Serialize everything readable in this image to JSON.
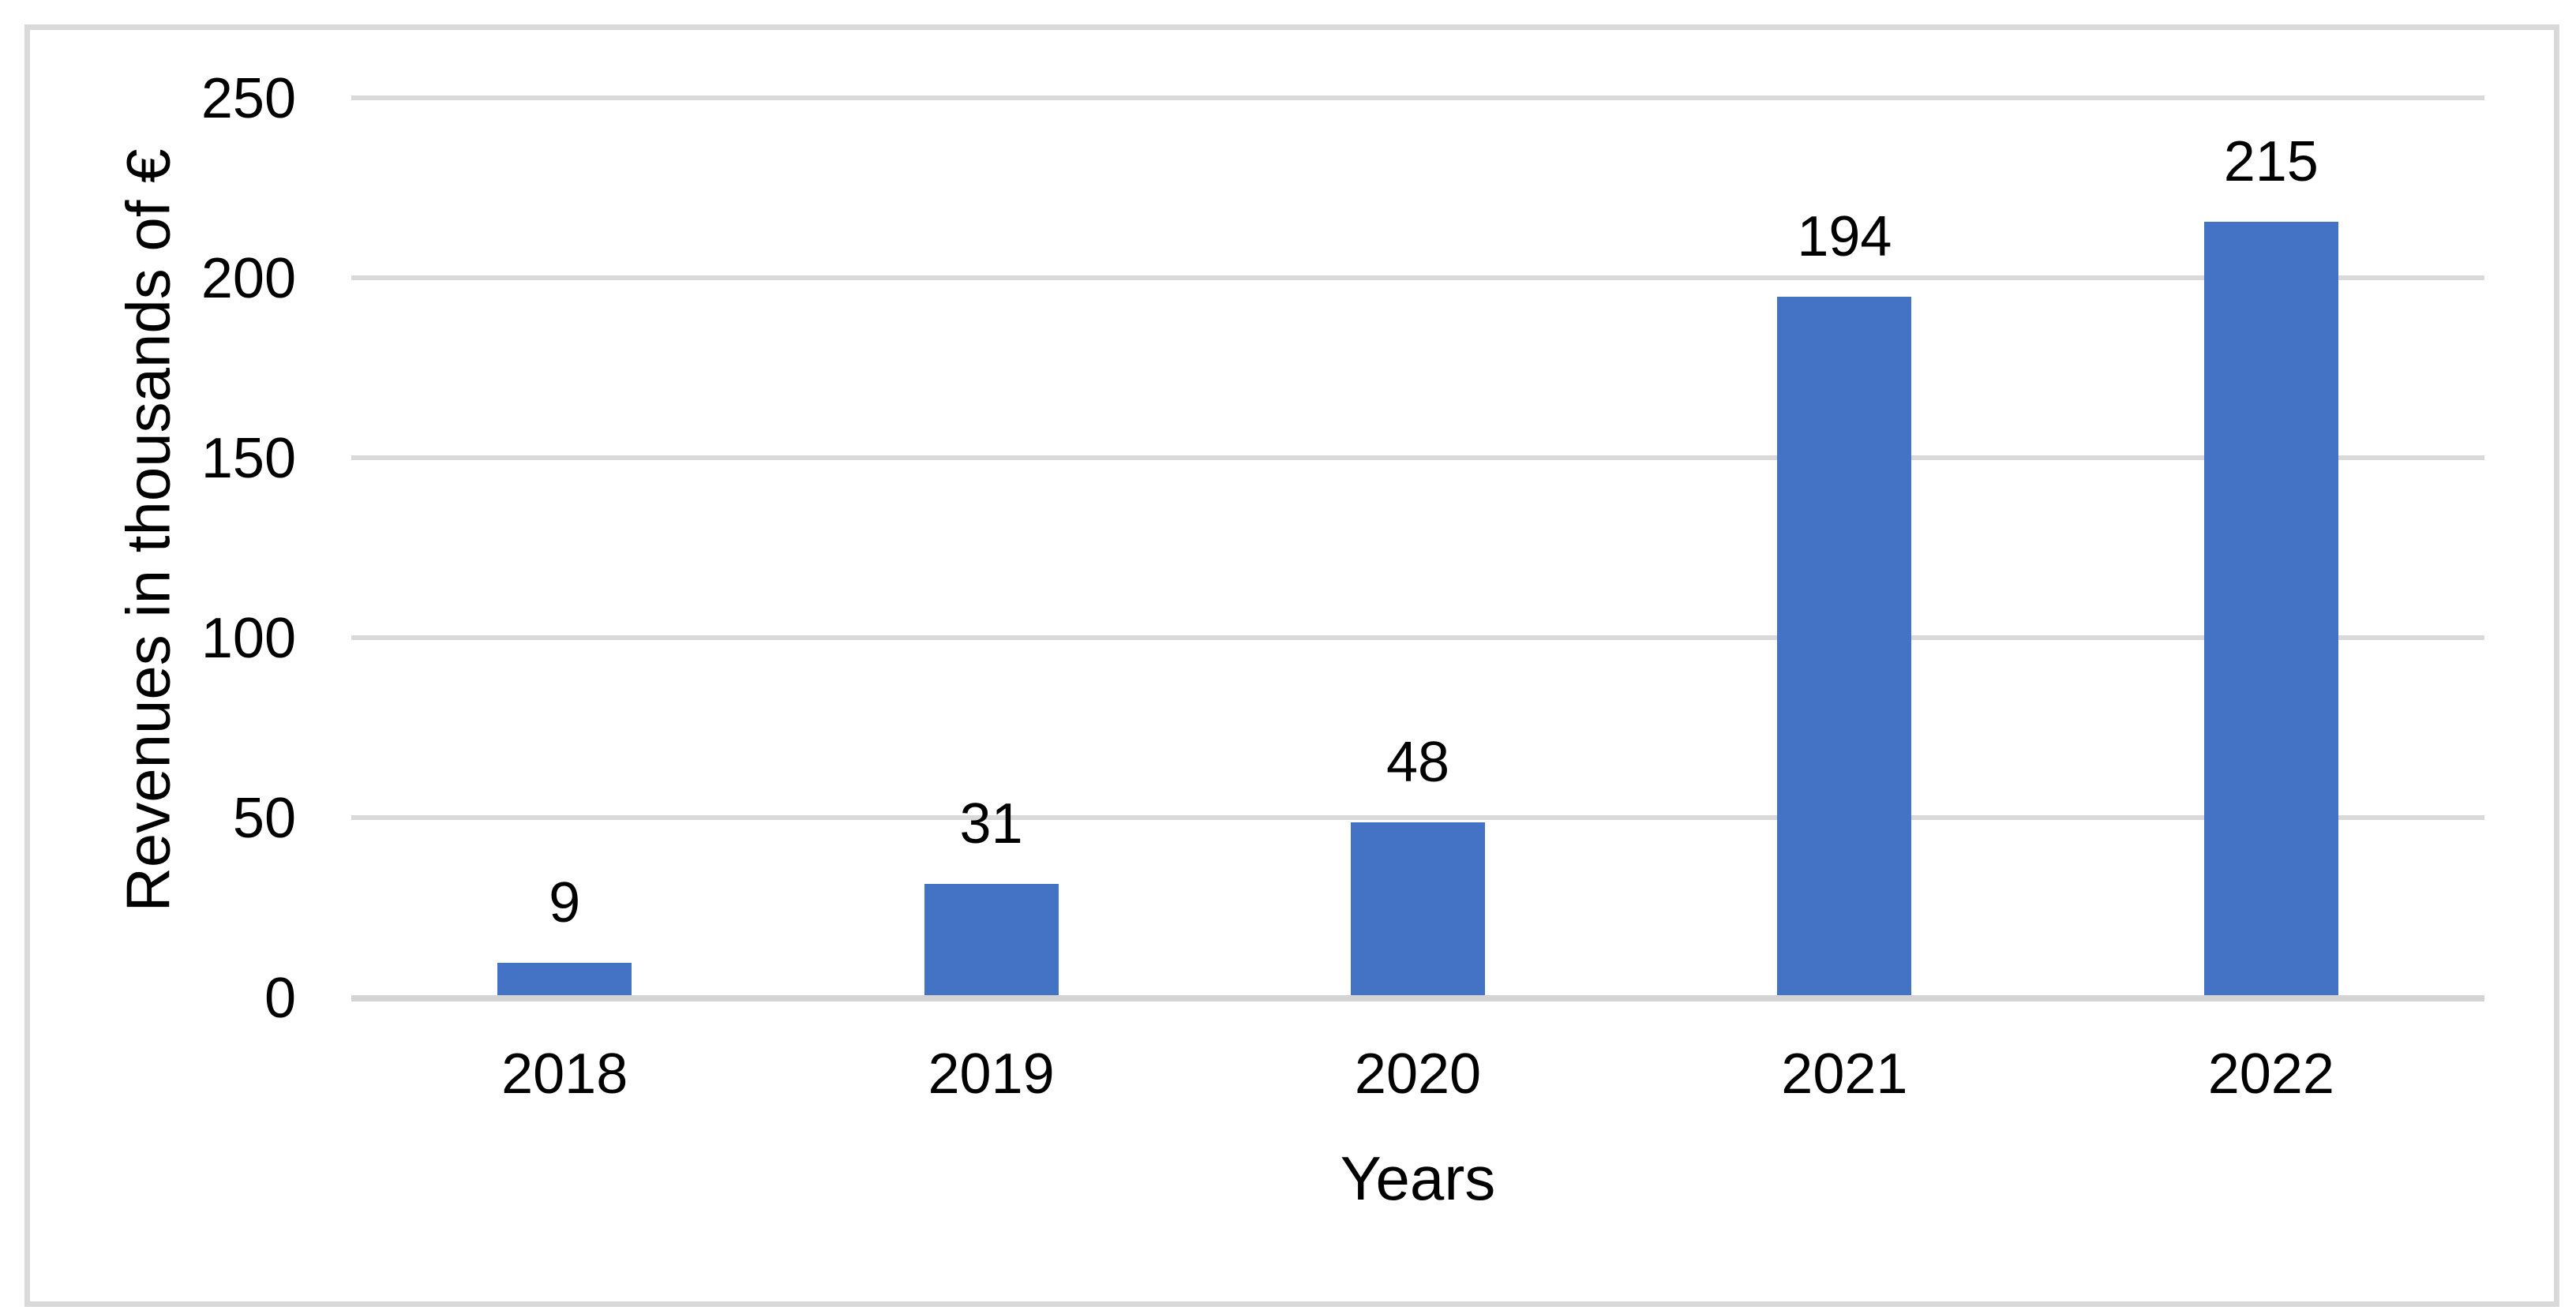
{
  "figure": {
    "background_color": "#FFFFFF",
    "border_color": "#D9D9D9"
  },
  "chart_data": {
    "type": "bar",
    "categories": [
      "2018",
      "2019",
      "2020",
      "2021",
      "2022"
    ],
    "values": [
      9,
      31,
      48,
      194,
      215
    ],
    "data_labels": [
      "9",
      "31",
      "48",
      "194",
      "215"
    ],
    "xlabel": "Years",
    "ylabel": "Revenues in thousands of €",
    "ylim": [
      0,
      250
    ],
    "yticks": [
      0,
      50,
      100,
      150,
      200,
      250
    ],
    "ytick_labels": [
      "0",
      "50",
      "100",
      "150",
      "200",
      "250"
    ],
    "grid": "horizontal",
    "legend": "none",
    "bar_color": "#4472C4",
    "gridline_color": "#D9D9D9",
    "axis_line_color": "#D4D4D4",
    "text_color": "#000000"
  }
}
